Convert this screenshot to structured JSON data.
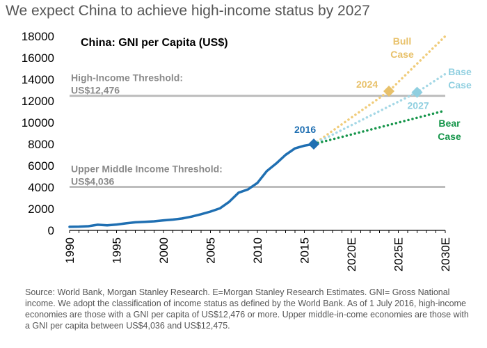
{
  "headline": "We expect China to achieve high-income status by 2027",
  "source_note": "Source: World Bank, Morgan Stanley Research. E=Morgan Stanley Research Estimates. GNI= Gross National income. We adopt the classification of income status as defined by the World Bank. As of 1 July 2016, high-income economies are those with a GNI per capita of US$12,476 or more. Upper middle-in-come economies are those with a GNI per capita between US$4,036 and US$12,475.",
  "colors": {
    "history": "#1f6fb2",
    "bull": "#f0cc7a",
    "base": "#a5d8e6",
    "bear": "#15954a",
    "threshold": "#bdbdbd",
    "ann_2016": "#1f6fb2",
    "ann_2024": "#e8c16a",
    "ann_2027": "#8fcfe0"
  },
  "chart_data": {
    "type": "line",
    "title": "China: GNI per Capita (US$)",
    "xlabel": "",
    "ylabel": "",
    "xlim": [
      1990,
      2030
    ],
    "ylim": [
      0,
      18000
    ],
    "y_ticks": [
      "0",
      "2000",
      "4000",
      "6000",
      "8000",
      "10000",
      "12000",
      "14000",
      "16000",
      "18000"
    ],
    "y_tick_values": [
      0,
      2000,
      4000,
      6000,
      8000,
      10000,
      12000,
      14000,
      16000,
      18000
    ],
    "x_ticks": [
      "1990",
      "1995",
      "2000",
      "2005",
      "2010",
      "2015",
      "2020E",
      "2025E",
      "2030E"
    ],
    "x_tick_values": [
      1990,
      1995,
      2000,
      2005,
      2010,
      2015,
      2020,
      2025,
      2030
    ],
    "grid": false,
    "series": [
      {
        "key": "history",
        "style": "solid",
        "x": [
          1990,
          1991,
          1992,
          1993,
          1994,
          1995,
          1996,
          1997,
          1998,
          1999,
          2000,
          2001,
          2002,
          2003,
          2004,
          2005,
          2006,
          2007,
          2008,
          2009,
          2010,
          2011,
          2012,
          2013,
          2014,
          2015,
          2016
        ],
        "y": [
          330,
          350,
          390,
          520,
          470,
          540,
          650,
          750,
          790,
          840,
          930,
          1000,
          1100,
          1280,
          1500,
          1740,
          2040,
          2650,
          3500,
          3800,
          4400,
          5500,
          6200,
          7000,
          7600,
          7850,
          8000
        ]
      },
      {
        "name": "Bull Case",
        "key": "bull",
        "style": "dotted",
        "x": [
          2016,
          2024,
          2030
        ],
        "y": [
          8000,
          12900,
          18000
        ]
      },
      {
        "name": "Base Case",
        "key": "base",
        "style": "dotted",
        "x": [
          2016,
          2027,
          2030
        ],
        "y": [
          8000,
          12800,
          14500
        ]
      },
      {
        "name": "Bear Case",
        "key": "bear",
        "style": "dotted",
        "x": [
          2016,
          2030
        ],
        "y": [
          8000,
          11100
        ]
      }
    ],
    "thresholds": [
      {
        "key": "high",
        "label_line1": "High-Income Threshold:",
        "label_line2": "US$12,476",
        "value": 12476
      },
      {
        "key": "upper",
        "label_line1": "Upper Middle Income Threshold:",
        "label_line2": "US$4,036",
        "value": 4036
      }
    ],
    "markers": [
      {
        "key": "m2016",
        "label": "2016",
        "x": 2016,
        "y": 8000,
        "color_key": "ann_2016"
      },
      {
        "key": "m2024",
        "label": "2024",
        "x": 2024,
        "y": 12900,
        "color_key": "ann_2024"
      },
      {
        "key": "m2027",
        "label": "2027",
        "x": 2027,
        "y": 12800,
        "color_key": "ann_2027"
      }
    ],
    "scenario_labels": [
      {
        "key": "bull",
        "line1": "Bull",
        "line2": "Case"
      },
      {
        "key": "base",
        "line1": "Base",
        "line2": "Case"
      },
      {
        "key": "bear",
        "line1": "Bear",
        "line2": "Case"
      }
    ]
  }
}
